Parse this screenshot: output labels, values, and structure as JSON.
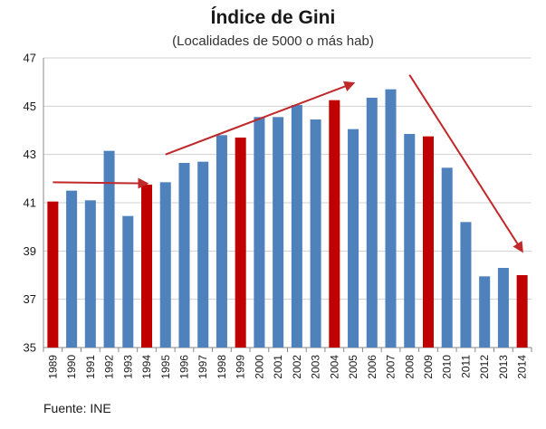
{
  "chart_data": {
    "type": "bar",
    "title": "Índice de Gini",
    "subtitle": "(Localidades de 5000 o más hab)",
    "xlabel": "",
    "ylabel": "",
    "ylim": [
      35,
      47
    ],
    "yticks": [
      "35",
      "37",
      "39",
      "41",
      "43",
      "45",
      "47"
    ],
    "grid": "horizontal",
    "legend": "none",
    "categories": [
      "1989",
      "1990",
      "1991",
      "1992",
      "1993",
      "1994",
      "1995",
      "1996",
      "1997",
      "1998",
      "1999",
      "2000",
      "2001",
      "2002",
      "2003",
      "2004",
      "2005",
      "2006",
      "2007",
      "2008",
      "2009",
      "2010",
      "2011",
      "2012",
      "2013",
      "2014"
    ],
    "values": [
      41.05,
      41.5,
      41.1,
      43.15,
      40.45,
      41.75,
      41.85,
      42.65,
      42.7,
      43.8,
      43.7,
      44.55,
      44.55,
      45.05,
      44.45,
      45.25,
      44.05,
      45.35,
      45.7,
      43.85,
      43.75,
      42.45,
      40.2,
      37.95,
      38.3,
      38.0
    ],
    "highlighted_categories": [
      "1989",
      "1994",
      "1999",
      "2004",
      "2009",
      "2014"
    ],
    "annotations": [
      {
        "type": "arrow",
        "from": {
          "x": "1989",
          "y": 41.85
        },
        "to": {
          "x": "1994",
          "y": 41.8
        }
      },
      {
        "type": "arrow",
        "from": {
          "x": "1995",
          "y": 43.0
        },
        "to": {
          "x": "2005",
          "y": 45.95
        }
      },
      {
        "type": "arrow",
        "from": {
          "x": "2008",
          "y": 46.3
        },
        "to": {
          "x": "2014",
          "y": 39.0
        }
      }
    ]
  },
  "colors": {
    "bar": "#4f81bd",
    "highlight": "#c00000",
    "arrow": "#c0282a",
    "grid": "#d0d0d0",
    "axis": "#888888"
  },
  "source": "Fuente: INE"
}
